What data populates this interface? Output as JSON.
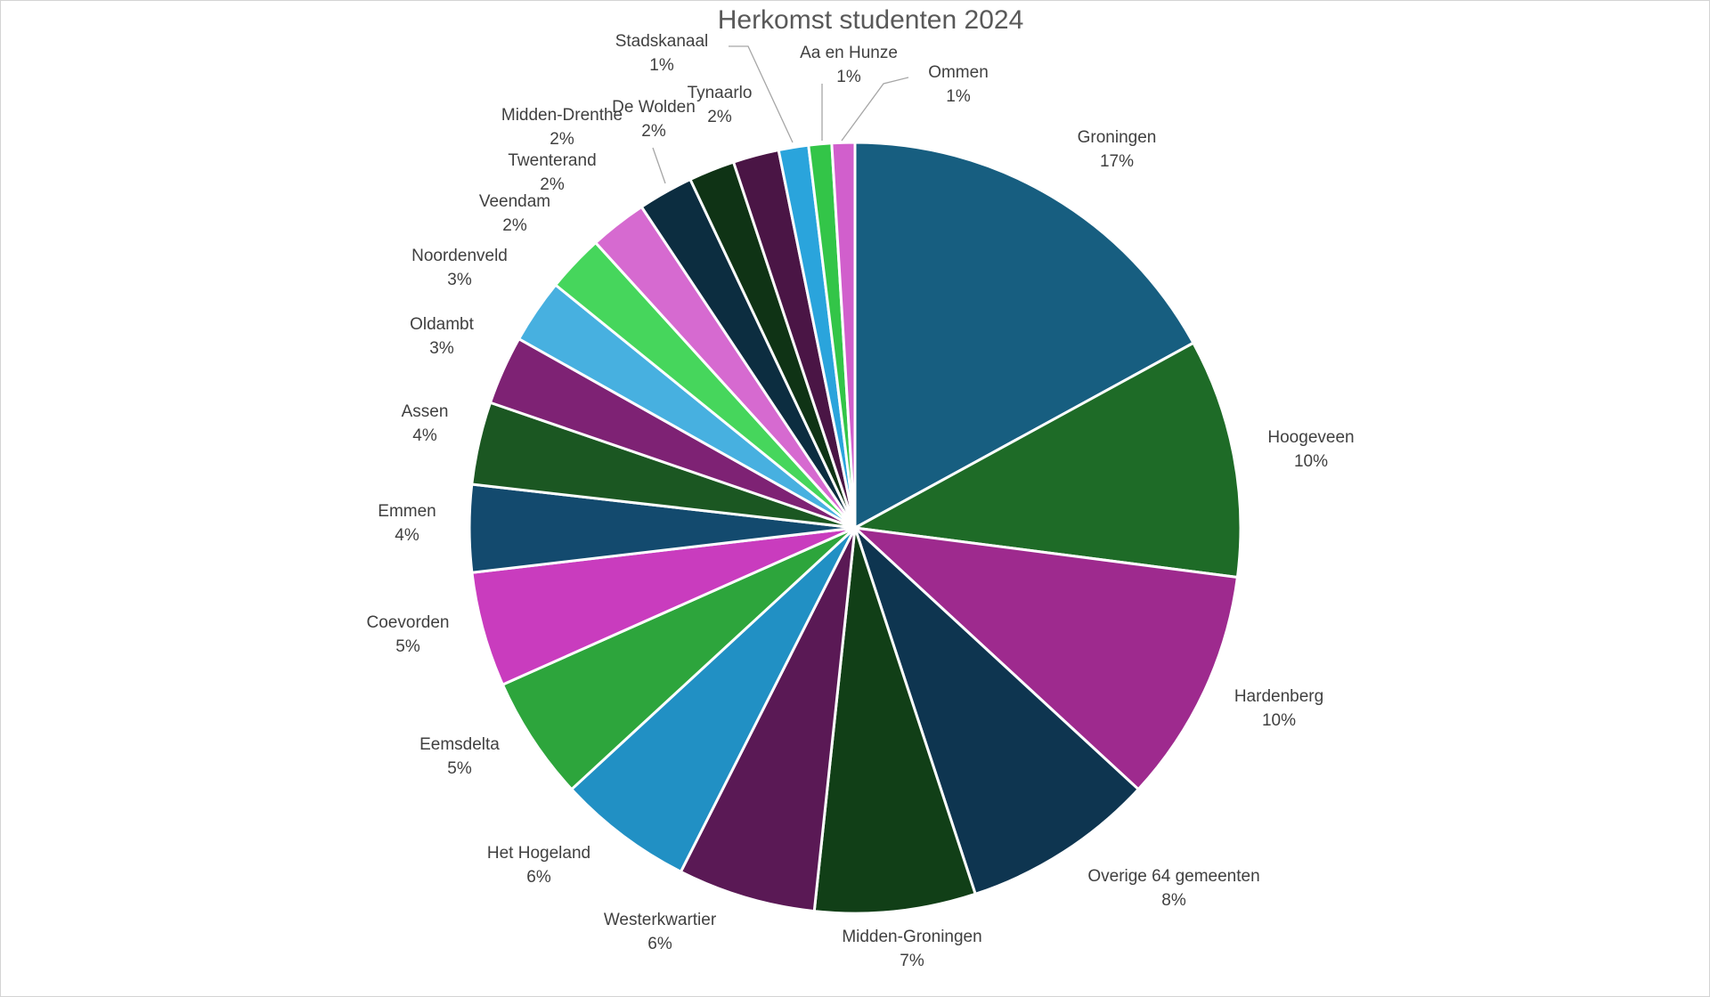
{
  "chart_data": {
    "type": "pie",
    "title": "Herkomst studenten 2024",
    "slices": [
      {
        "name": "Groningen",
        "pct_label": "17%",
        "value": 17.7,
        "color": "#175E80"
      },
      {
        "name": "Hoogeveen",
        "pct_label": "10%",
        "value": 10.4,
        "color": "#1E6B27"
      },
      {
        "name": "Hardenberg",
        "pct_label": "10%",
        "value": 10.2,
        "color": "#9E2A8E"
      },
      {
        "name": "Overige 64 gemeenten",
        "pct_label": "8%",
        "value": 8.4,
        "color": "#0E3550"
      },
      {
        "name": "Midden-Groningen",
        "pct_label": "7%",
        "value": 7.0,
        "color": "#113F17"
      },
      {
        "name": "Westerkwartier",
        "pct_label": "6%",
        "value": 6.0,
        "color": "#5A1955"
      },
      {
        "name": "Het Hogeland",
        "pct_label": "6%",
        "value": 5.9,
        "color": "#2190C4"
      },
      {
        "name": "Eemsdelta",
        "pct_label": "5%",
        "value": 5.4,
        "color": "#2DA53C"
      },
      {
        "name": "Coevorden",
        "pct_label": "5%",
        "value": 5.0,
        "color": "#C93CBE"
      },
      {
        "name": "Emmen",
        "pct_label": "4%",
        "value": 3.8,
        "color": "#134A6E"
      },
      {
        "name": "Assen",
        "pct_label": "4%",
        "value": 3.6,
        "color": "#1B5722"
      },
      {
        "name": "Oldambt",
        "pct_label": "3%",
        "value": 3.0,
        "color": "#7E2274"
      },
      {
        "name": "Noordenveld",
        "pct_label": "3%",
        "value": 2.8,
        "color": "#47B0E0"
      },
      {
        "name": "Veendam",
        "pct_label": "2%",
        "value": 2.5,
        "color": "#46D65C"
      },
      {
        "name": "Twenterand",
        "pct_label": "2%",
        "value": 2.5,
        "color": "#D66AD0"
      },
      {
        "name": "Midden-Drenthe",
        "pct_label": "2%",
        "value": 2.4,
        "color": "#0C2D40"
      },
      {
        "name": "De Wolden",
        "pct_label": "2%",
        "value": 2.0,
        "color": "#0F3315"
      },
      {
        "name": "Tynaarlo",
        "pct_label": "2%",
        "value": 2.0,
        "color": "#4A1545"
      },
      {
        "name": "Stadskanaal",
        "pct_label": "1%",
        "value": 1.3,
        "color": "#2AA4DC"
      },
      {
        "name": "Aa en Hunze",
        "pct_label": "1%",
        "value": 1.0,
        "color": "#33C548"
      },
      {
        "name": "Ommen",
        "pct_label": "1%",
        "value": 1.0,
        "color": "#D15FCC"
      }
    ],
    "legend": "none (data labels outside slices)"
  }
}
